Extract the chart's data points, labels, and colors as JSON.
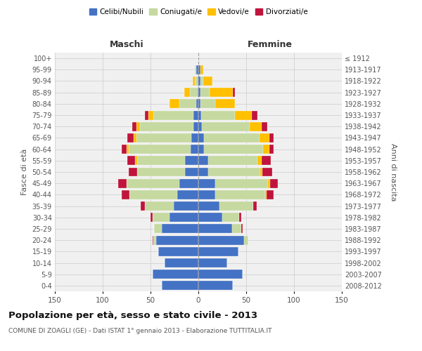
{
  "age_groups": [
    "0-4",
    "5-9",
    "10-14",
    "15-19",
    "20-24",
    "25-29",
    "30-34",
    "35-39",
    "40-44",
    "45-49",
    "50-54",
    "55-59",
    "60-64",
    "65-69",
    "70-74",
    "75-79",
    "80-84",
    "85-89",
    "90-94",
    "95-99",
    "100+"
  ],
  "birth_years": [
    "2008-2012",
    "2003-2007",
    "1998-2002",
    "1993-1997",
    "1988-1992",
    "1983-1987",
    "1978-1982",
    "1973-1977",
    "1968-1972",
    "1963-1967",
    "1958-1962",
    "1953-1957",
    "1948-1952",
    "1943-1947",
    "1938-1942",
    "1933-1937",
    "1928-1932",
    "1923-1927",
    "1918-1922",
    "1913-1917",
    "≤ 1912"
  ],
  "male": {
    "celibi": [
      38,
      48,
      35,
      42,
      44,
      38,
      30,
      26,
      22,
      20,
      14,
      14,
      8,
      7,
      5,
      5,
      2,
      1,
      1,
      2,
      0
    ],
    "coniugati": [
      0,
      0,
      0,
      0,
      3,
      8,
      18,
      30,
      50,
      55,
      50,
      50,
      65,
      58,
      56,
      42,
      18,
      8,
      3,
      2,
      0
    ],
    "vedovi": [
      0,
      0,
      0,
      0,
      0,
      0,
      0,
      0,
      0,
      0,
      0,
      2,
      2,
      3,
      4,
      5,
      10,
      6,
      2,
      0,
      0
    ],
    "divorziati": [
      0,
      0,
      0,
      0,
      1,
      0,
      2,
      4,
      8,
      9,
      9,
      8,
      5,
      6,
      4,
      4,
      0,
      0,
      0,
      0,
      0
    ]
  },
  "female": {
    "nubili": [
      36,
      46,
      30,
      42,
      48,
      35,
      25,
      22,
      18,
      18,
      10,
      10,
      6,
      6,
      4,
      3,
      2,
      2,
      2,
      2,
      0
    ],
    "coniugate": [
      0,
      0,
      0,
      0,
      4,
      10,
      18,
      35,
      52,
      55,
      55,
      52,
      62,
      58,
      50,
      35,
      16,
      10,
      3,
      0,
      0
    ],
    "vedove": [
      0,
      0,
      0,
      0,
      0,
      0,
      0,
      0,
      1,
      2,
      2,
      4,
      6,
      10,
      12,
      18,
      20,
      24,
      10,
      3,
      0
    ],
    "divorziate": [
      0,
      0,
      0,
      0,
      0,
      1,
      2,
      4,
      8,
      8,
      10,
      10,
      5,
      5,
      6,
      6,
      0,
      2,
      0,
      0,
      0
    ]
  },
  "colors": {
    "celibi": "#4472c4",
    "coniugati": "#c5d9a0",
    "vedovi": "#ffc000",
    "divorziati": "#c0143c"
  },
  "xlim": 150,
  "title": "Popolazione per età, sesso e stato civile - 2013",
  "subtitle": "COMUNE DI ZOAGLI (GE) - Dati ISTAT 1° gennaio 2013 - Elaborazione TUTTITALIA.IT",
  "label_maschi": "Maschi",
  "label_femmine": "Femmine",
  "ylabel_left": "Fasce di età",
  "ylabel_right": "Anni di nascita",
  "bg_color": "#ffffff",
  "plot_bg": "#f0f0f0",
  "grid_color": "#cccccc"
}
